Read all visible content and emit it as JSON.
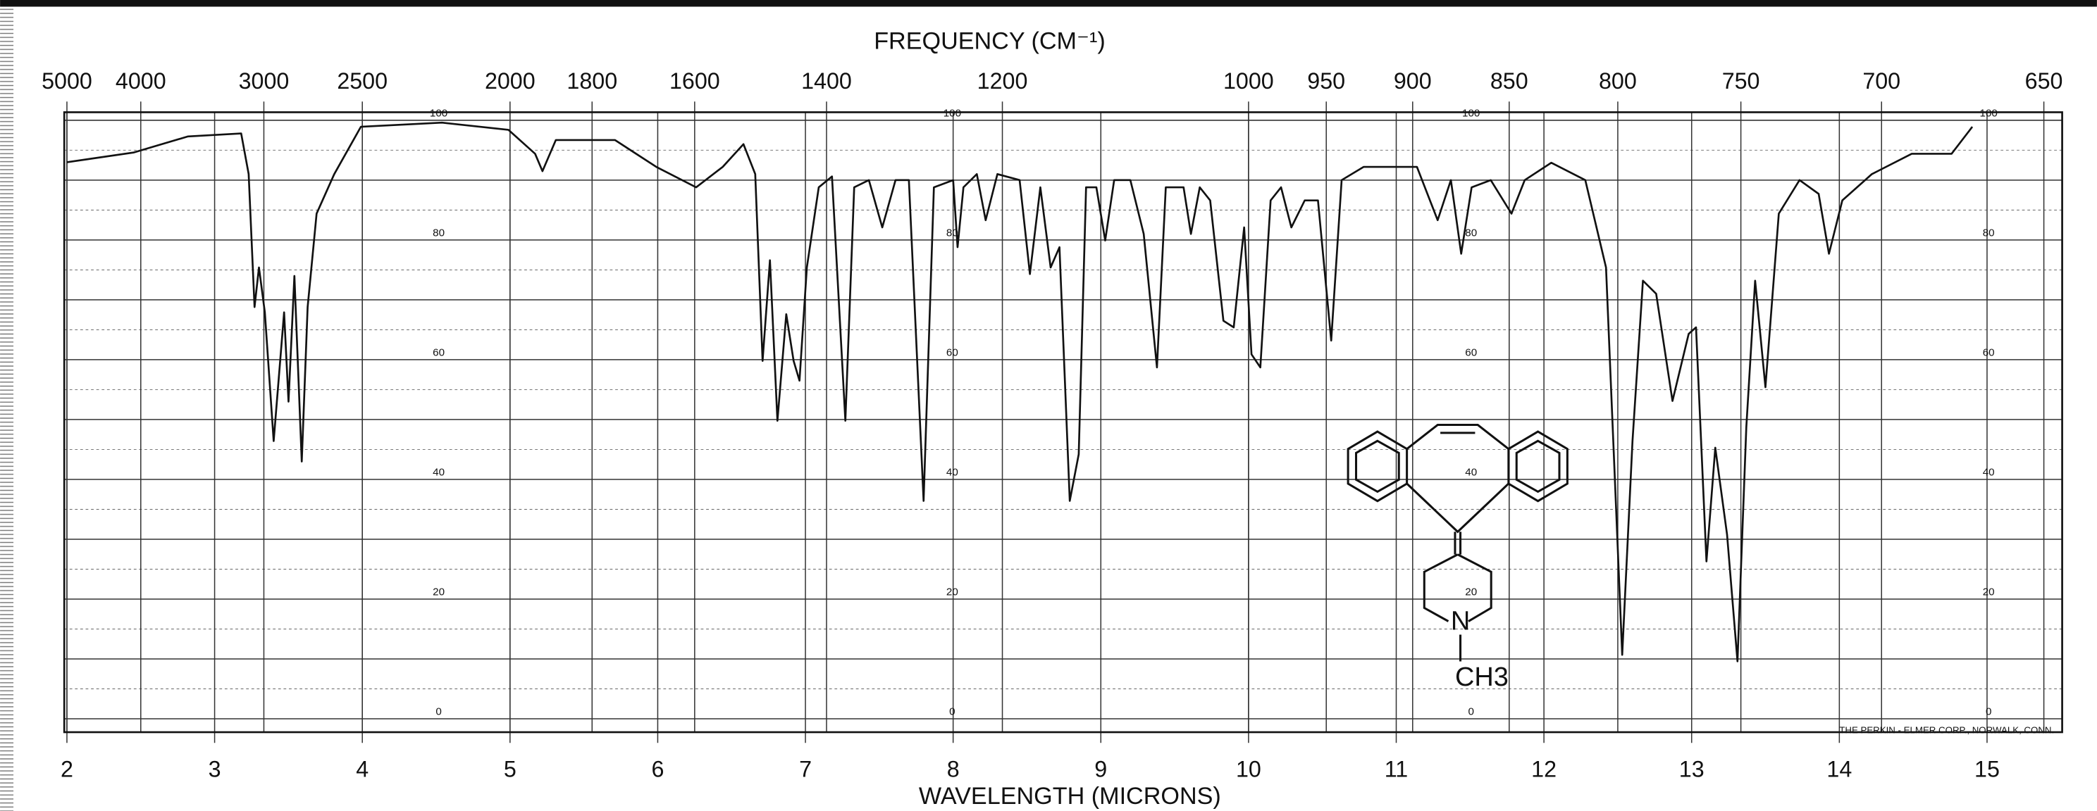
{
  "chart_data": {
    "type": "line",
    "title": "FREQUENCY (CM⁻¹)",
    "x_label": "WAVELENGTH (MICRONS)",
    "footer": "THE PERKIN - ELMER CORP., NORWALK, CONN.",
    "structure_labels": [
      "N",
      "CH3"
    ],
    "xlim": [
      2,
      15.4
    ],
    "xticks": [
      2,
      3,
      4,
      5,
      6,
      7,
      8,
      9,
      10,
      11,
      12,
      13,
      14,
      15
    ],
    "x2ticks": [
      5000,
      4000,
      3000,
      2500,
      2000,
      1800,
      1600,
      1400,
      1200,
      1000,
      950,
      900,
      850,
      800,
      750,
      700,
      650
    ],
    "ylim": [
      0,
      100
    ],
    "yticks": [
      0,
      20,
      40,
      60,
      80,
      100
    ],
    "grid": true,
    "color": "#111111",
    "x": [
      2.0,
      2.45,
      2.82,
      3.18,
      3.23,
      3.27,
      3.3,
      3.34,
      3.4,
      3.47,
      3.5,
      3.54,
      3.59,
      3.63,
      3.69,
      3.81,
      3.99,
      4.54,
      4.99,
      5.17,
      5.22,
      5.31,
      5.71,
      5.99,
      6.26,
      6.44,
      6.58,
      6.66,
      6.71,
      6.76,
      6.81,
      6.87,
      6.92,
      6.96,
      7.01,
      7.09,
      7.18,
      7.27,
      7.33,
      7.43,
      7.52,
      7.61,
      7.7,
      7.8,
      7.87,
      8.0,
      8.03,
      8.07,
      8.16,
      8.22,
      8.3,
      8.45,
      8.52,
      8.59,
      8.66,
      8.72,
      8.79,
      8.85,
      8.9,
      8.97,
      9.03,
      9.09,
      9.2,
      9.29,
      9.38,
      9.44,
      9.56,
      9.61,
      9.67,
      9.74,
      9.83,
      9.9,
      9.97,
      10.02,
      10.08,
      10.15,
      10.22,
      10.29,
      10.38,
      10.47,
      10.56,
      10.63,
      10.78,
      11.14,
      11.28,
      11.37,
      11.44,
      11.51,
      11.64,
      11.78,
      11.87,
      12.05,
      12.28,
      12.42,
      12.53,
      12.6,
      12.67,
      12.76,
      12.87,
      12.98,
      13.03,
      13.1,
      13.16,
      13.24,
      13.31,
      13.37,
      13.43,
      13.5,
      13.59,
      13.73,
      13.86,
      13.93,
      14.02,
      14.22,
      14.49,
      14.76,
      14.9
    ],
    "values": [
      93,
      94.6,
      97.3,
      97.8,
      91,
      68.8,
      75.4,
      67.9,
      46.4,
      67.9,
      53,
      74,
      43,
      68.8,
      84.4,
      91,
      98.9,
      99.6,
      98.4,
      94.4,
      91.5,
      96.7,
      96.7,
      92.2,
      88.8,
      92.2,
      96,
      91,
      59.8,
      76.6,
      49.8,
      67.6,
      59.8,
      56.5,
      75.4,
      88.8,
      90.6,
      49.8,
      88.8,
      90,
      82.1,
      90,
      90,
      36.4,
      88.8,
      90,
      78.8,
      88.8,
      91,
      83.3,
      91,
      90,
      74.3,
      88.8,
      75.4,
      78.8,
      36.4,
      44.2,
      88.8,
      88.8,
      79.9,
      90,
      90,
      81,
      58.7,
      88.8,
      88.8,
      81,
      88.8,
      86.6,
      66.5,
      65.4,
      82.1,
      60.9,
      58.7,
      86.6,
      88.8,
      82.1,
      86.6,
      86.6,
      63.2,
      90,
      92.2,
      92.2,
      83.3,
      90,
      77.7,
      88.8,
      90,
      84.4,
      90,
      92.9,
      90,
      75.4,
      10.7,
      46.4,
      73.2,
      71,
      53.1,
      64.3,
      65.4,
      26.3,
      45.3,
      30.8,
      9.6,
      48.7,
      73.2,
      55.4,
      84.4,
      90,
      87.7,
      77.7,
      86.6,
      91,
      94.4,
      94.4,
      98.9
    ]
  }
}
